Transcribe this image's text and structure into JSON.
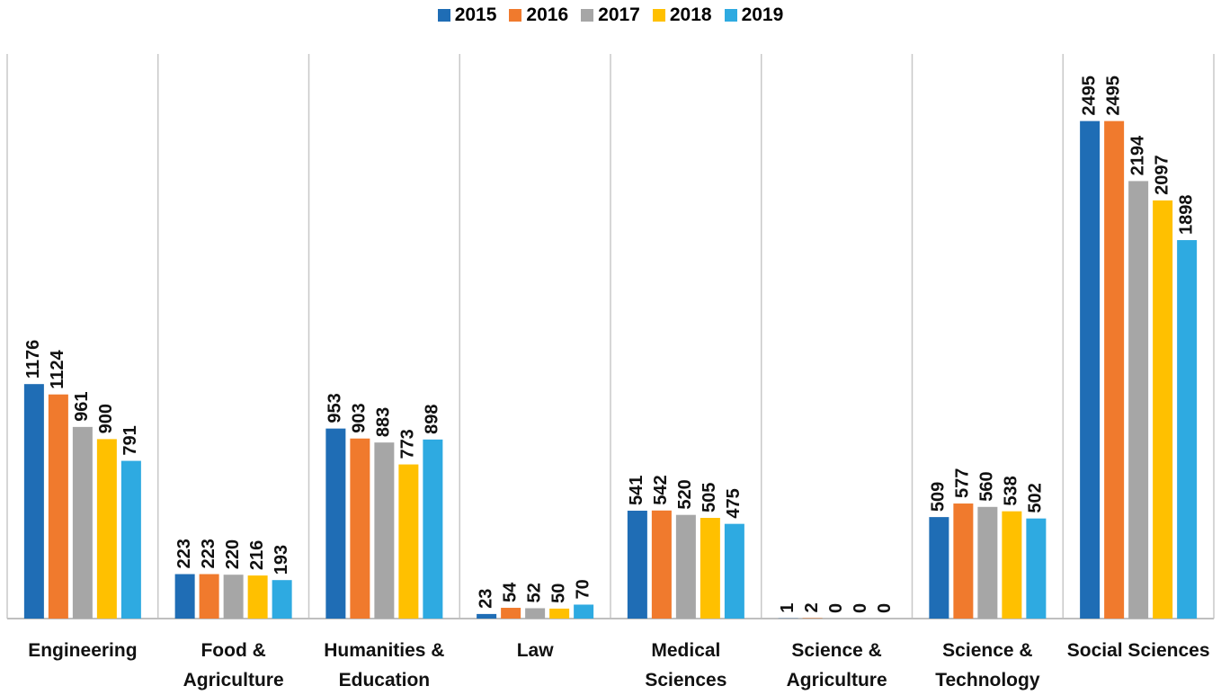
{
  "chart_data": {
    "type": "bar",
    "categories": [
      "Engineering",
      "Food &\nAgriculture",
      "Humanities &\nEducation",
      "Law",
      "Medical\nSciences",
      "Science &\nAgriculture",
      "Science &\nTechnology",
      "Social Sciences"
    ],
    "series": [
      {
        "name": "2015",
        "color": "#1f6db5",
        "values": [
          1176,
          223,
          953,
          23,
          541,
          1,
          509,
          2495
        ]
      },
      {
        "name": "2016",
        "color": "#f07a2d",
        "values": [
          1124,
          223,
          903,
          54,
          542,
          2,
          577,
          2495
        ]
      },
      {
        "name": "2017",
        "color": "#a6a6a6",
        "values": [
          961,
          220,
          883,
          52,
          520,
          0,
          560,
          2194
        ]
      },
      {
        "name": "2018",
        "color": "#ffc000",
        "values": [
          900,
          216,
          773,
          50,
          505,
          0,
          538,
          2097
        ]
      },
      {
        "name": "2019",
        "color": "#2eaae1",
        "values": [
          791,
          193,
          898,
          70,
          475,
          0,
          502,
          1898
        ]
      }
    ],
    "ylim": [
      0,
      2800
    ],
    "grid": false,
    "legend": "top"
  }
}
